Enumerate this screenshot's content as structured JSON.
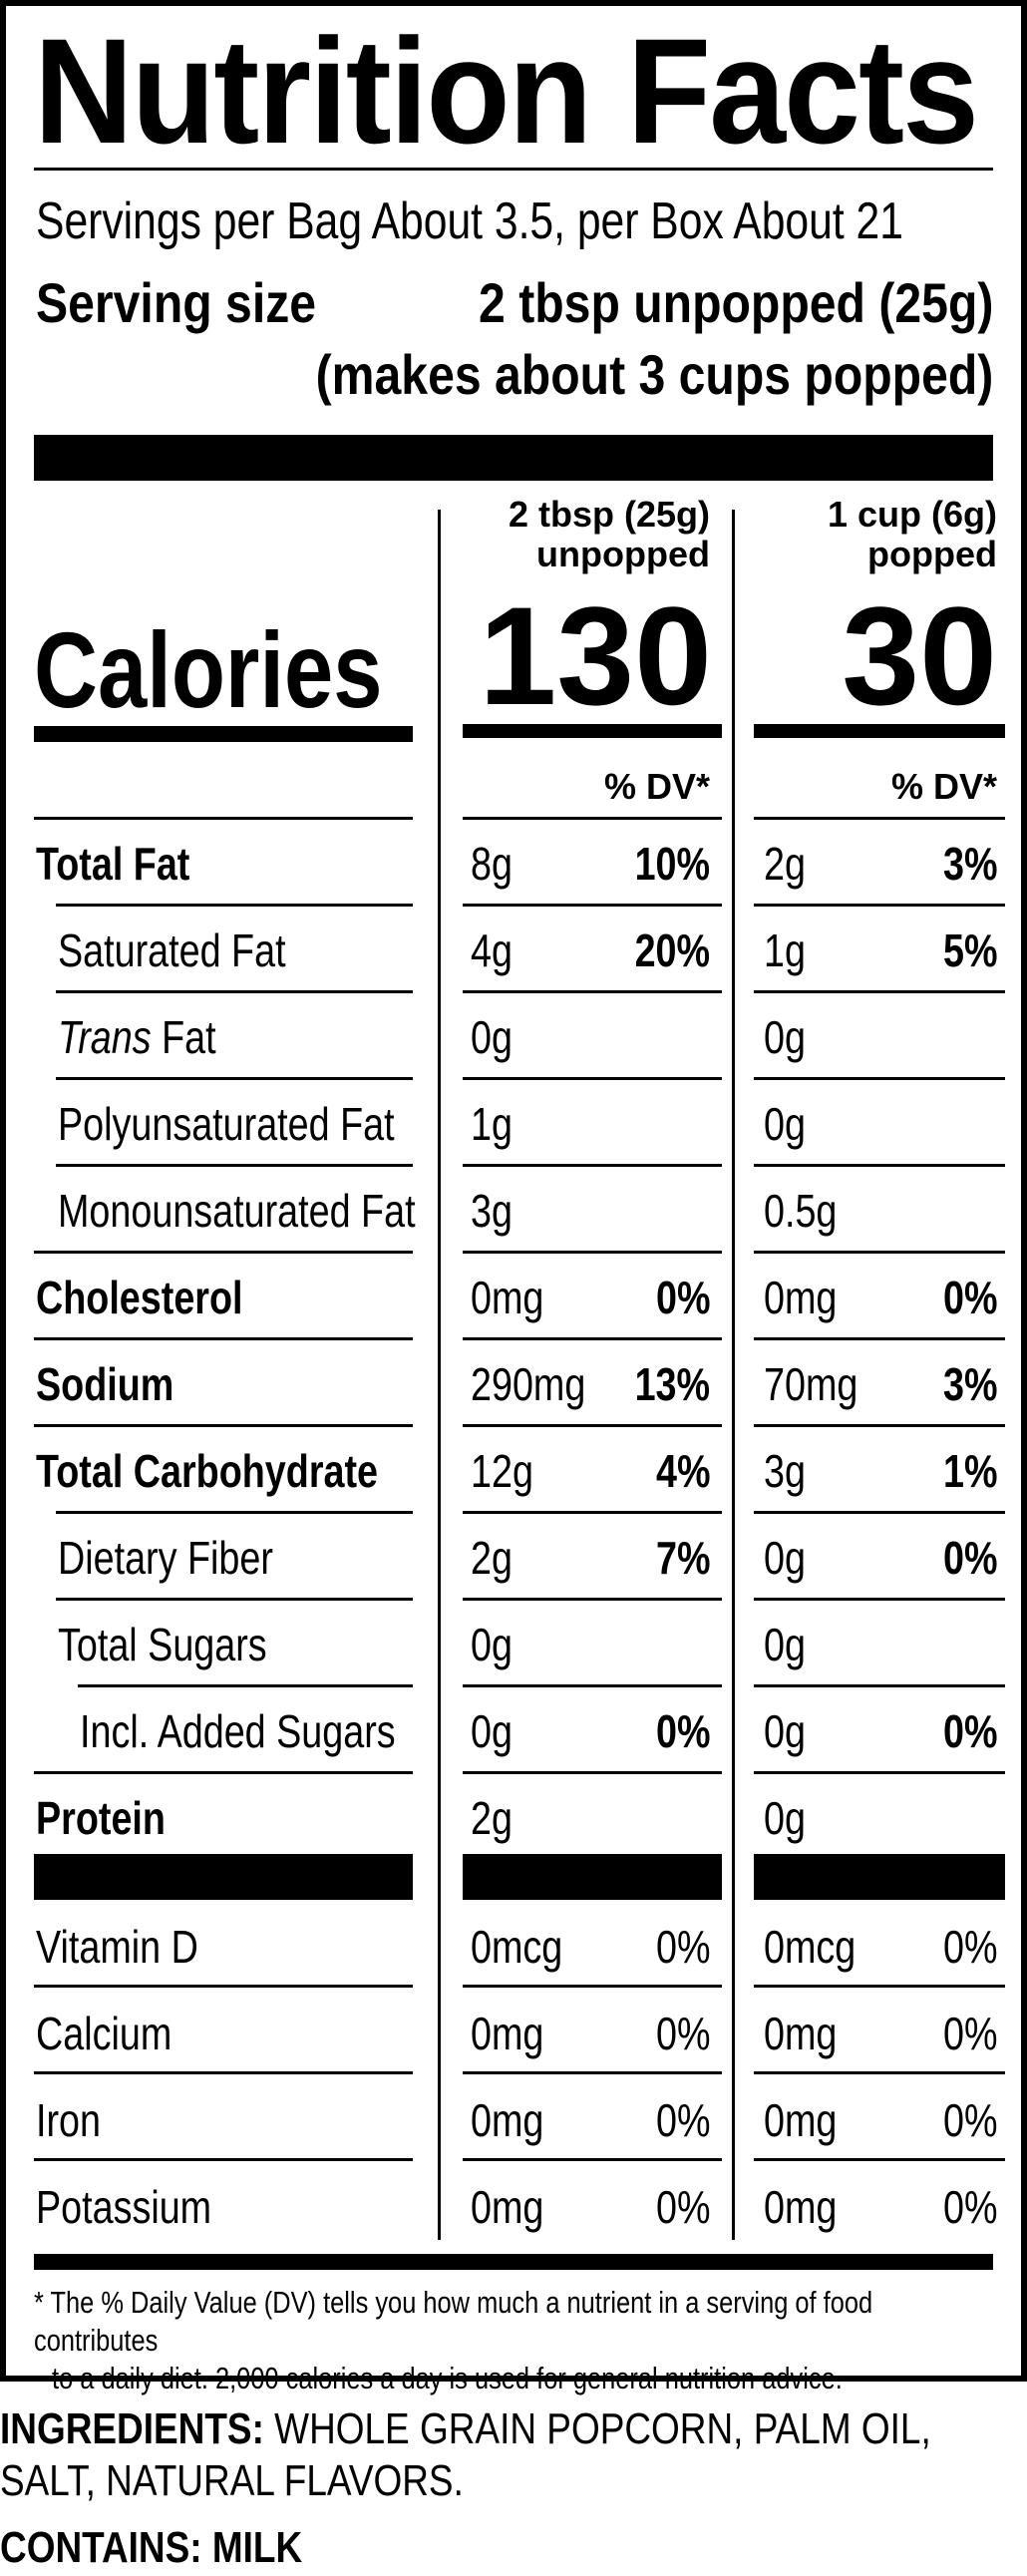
{
  "title": "Nutrition Facts",
  "servings_per": "Servings per Bag About 3.5, per Box About 21",
  "serving_size": {
    "label": "Serving size",
    "value": "2 tbsp unpopped (25g)",
    "note": "(makes about 3 cups popped)"
  },
  "columns": [
    {
      "head_line1": "2 tbsp (25g)",
      "head_line2": "unpopped",
      "calories": "130",
      "dv_header": "% DV*"
    },
    {
      "head_line1": "1 cup (6g)",
      "head_line2": "popped",
      "calories": "30",
      "dv_header": "% DV*"
    }
  ],
  "calories_label": "Calories",
  "nutrients": [
    {
      "name": "Total Fat",
      "bold": true,
      "indent": 0,
      "c1_amt": "8g",
      "c1_dv": "10%",
      "c2_amt": "2g",
      "c2_dv": "3%"
    },
    {
      "name": "Saturated Fat",
      "bold": false,
      "indent": 1,
      "c1_amt": "4g",
      "c1_dv": "20%",
      "c2_amt": "1g",
      "c2_dv": "5%"
    },
    {
      "name_italic": "Trans",
      "name": " Fat",
      "bold": false,
      "indent": 1,
      "c1_amt": "0g",
      "c1_dv": "",
      "c2_amt": "0g",
      "c2_dv": ""
    },
    {
      "name": "Polyunsaturated Fat",
      "bold": false,
      "indent": 1,
      "c1_amt": "1g",
      "c1_dv": "",
      "c2_amt": "0g",
      "c2_dv": ""
    },
    {
      "name": "Monounsaturated Fat",
      "bold": false,
      "indent": 1,
      "c1_amt": "3g",
      "c1_dv": "",
      "c2_amt": "0.5g",
      "c2_dv": ""
    },
    {
      "name": "Cholesterol",
      "bold": true,
      "indent": 0,
      "c1_amt": "0mg",
      "c1_dv": "0%",
      "c2_amt": "0mg",
      "c2_dv": "0%"
    },
    {
      "name": "Sodium",
      "bold": true,
      "indent": 0,
      "c1_amt": "290mg",
      "c1_dv": "13%",
      "c2_amt": "70mg",
      "c2_dv": "3%"
    },
    {
      "name": "Total Carbohydrate",
      "bold": true,
      "indent": 0,
      "c1_amt": "12g",
      "c1_dv": "4%",
      "c2_amt": "3g",
      "c2_dv": "1%"
    },
    {
      "name": "Dietary Fiber",
      "bold": false,
      "indent": 1,
      "c1_amt": "2g",
      "c1_dv": "7%",
      "c2_amt": "0g",
      "c2_dv": "0%"
    },
    {
      "name": "Total Sugars",
      "bold": false,
      "indent": 1,
      "c1_amt": "0g",
      "c1_dv": "",
      "c2_amt": "0g",
      "c2_dv": ""
    },
    {
      "name": "Incl. Added Sugars",
      "bold": false,
      "indent": 2,
      "c1_amt": "0g",
      "c1_dv": "0%",
      "c2_amt": "0g",
      "c2_dv": "0%"
    },
    {
      "name": "Protein",
      "bold": true,
      "indent": 0,
      "c1_amt": "2g",
      "c1_dv": "",
      "c2_amt": "0g",
      "c2_dv": ""
    }
  ],
  "vitamins": [
    {
      "name": "Vitamin D",
      "c1_amt": "0mcg",
      "c1_dv": "0%",
      "c2_amt": "0mcg",
      "c2_dv": "0%"
    },
    {
      "name": "Calcium",
      "c1_amt": "0mg",
      "c1_dv": "0%",
      "c2_amt": "0mg",
      "c2_dv": "0%"
    },
    {
      "name": "Iron",
      "c1_amt": "0mg",
      "c1_dv": "0%",
      "c2_amt": "0mg",
      "c2_dv": "0%"
    },
    {
      "name": "Potassium",
      "c1_amt": "0mg",
      "c1_dv": "0%",
      "c2_amt": "0mg",
      "c2_dv": "0%"
    }
  ],
  "footnote": {
    "line1": "* The % Daily Value (DV) tells you how much a nutrient in a serving of food contributes",
    "line2": "to a daily diet. 2,000 calories a day is used for general nutrition advice."
  },
  "ingredients": {
    "label": "INGREDIENTS:",
    "text": "WHOLE GRAIN POPCORN, PALM OIL, SALT, NATURAL FLAVORS."
  },
  "contains": "CONTAINS: MILK"
}
